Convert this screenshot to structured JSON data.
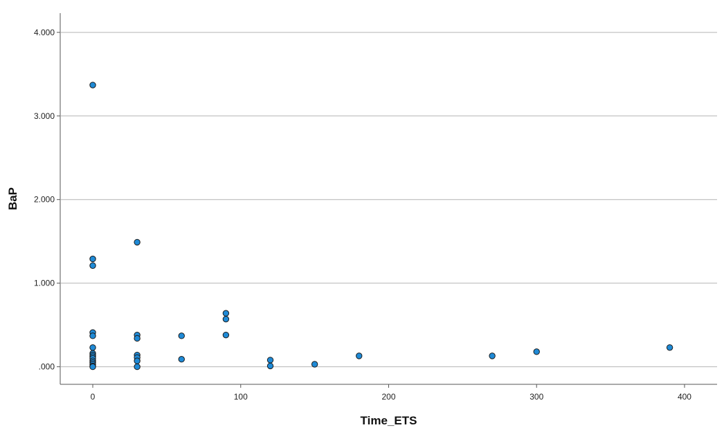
{
  "chart_data": {
    "type": "scatter",
    "title": "",
    "xlabel": "Time_ETS",
    "ylabel": "BaP",
    "xlim": [
      -22,
      422
    ],
    "ylim": [
      -0.21,
      4.23
    ],
    "x_ticks": [
      0,
      100,
      200,
      300,
      400
    ],
    "x_tick_labels": [
      "0",
      "100",
      "200",
      "300",
      "400"
    ],
    "y_ticks": [
      0,
      1,
      2,
      3,
      4
    ],
    "y_tick_labels": [
      ".000",
      "1.000",
      "2.000",
      "3.000",
      "4.000"
    ],
    "grid": "horizontal",
    "legend": "none",
    "marker_color": "#1f8ad6",
    "series": [
      {
        "points": [
          {
            "x": 0,
            "y": 3.37
          },
          {
            "x": 0,
            "y": 1.29
          },
          {
            "x": 0,
            "y": 1.21
          },
          {
            "x": 0,
            "y": 0.41
          },
          {
            "x": 0,
            "y": 0.37
          },
          {
            "x": 0,
            "y": 0.23
          },
          {
            "x": 0,
            "y": 0.16
          },
          {
            "x": 0,
            "y": 0.14
          },
          {
            "x": 0,
            "y": 0.12
          },
          {
            "x": 0,
            "y": 0.1
          },
          {
            "x": 0,
            "y": 0.07
          },
          {
            "x": 0,
            "y": 0.05
          },
          {
            "x": 0,
            "y": 0.03
          },
          {
            "x": 0,
            "y": 0.01
          },
          {
            "x": 0,
            "y": 0.0
          },
          {
            "x": 30,
            "y": 1.49
          },
          {
            "x": 30,
            "y": 0.38
          },
          {
            "x": 30,
            "y": 0.34
          },
          {
            "x": 30,
            "y": 0.14
          },
          {
            "x": 30,
            "y": 0.11
          },
          {
            "x": 30,
            "y": 0.07
          },
          {
            "x": 30,
            "y": 0.0
          },
          {
            "x": 60,
            "y": 0.37
          },
          {
            "x": 60,
            "y": 0.09
          },
          {
            "x": 90,
            "y": 0.64
          },
          {
            "x": 90,
            "y": 0.57
          },
          {
            "x": 90,
            "y": 0.38
          },
          {
            "x": 120,
            "y": 0.08
          },
          {
            "x": 120,
            "y": 0.01
          },
          {
            "x": 150,
            "y": 0.03
          },
          {
            "x": 180,
            "y": 0.13
          },
          {
            "x": 270,
            "y": 0.13
          },
          {
            "x": 300,
            "y": 0.18
          },
          {
            "x": 390,
            "y": 0.23
          }
        ]
      }
    ]
  }
}
